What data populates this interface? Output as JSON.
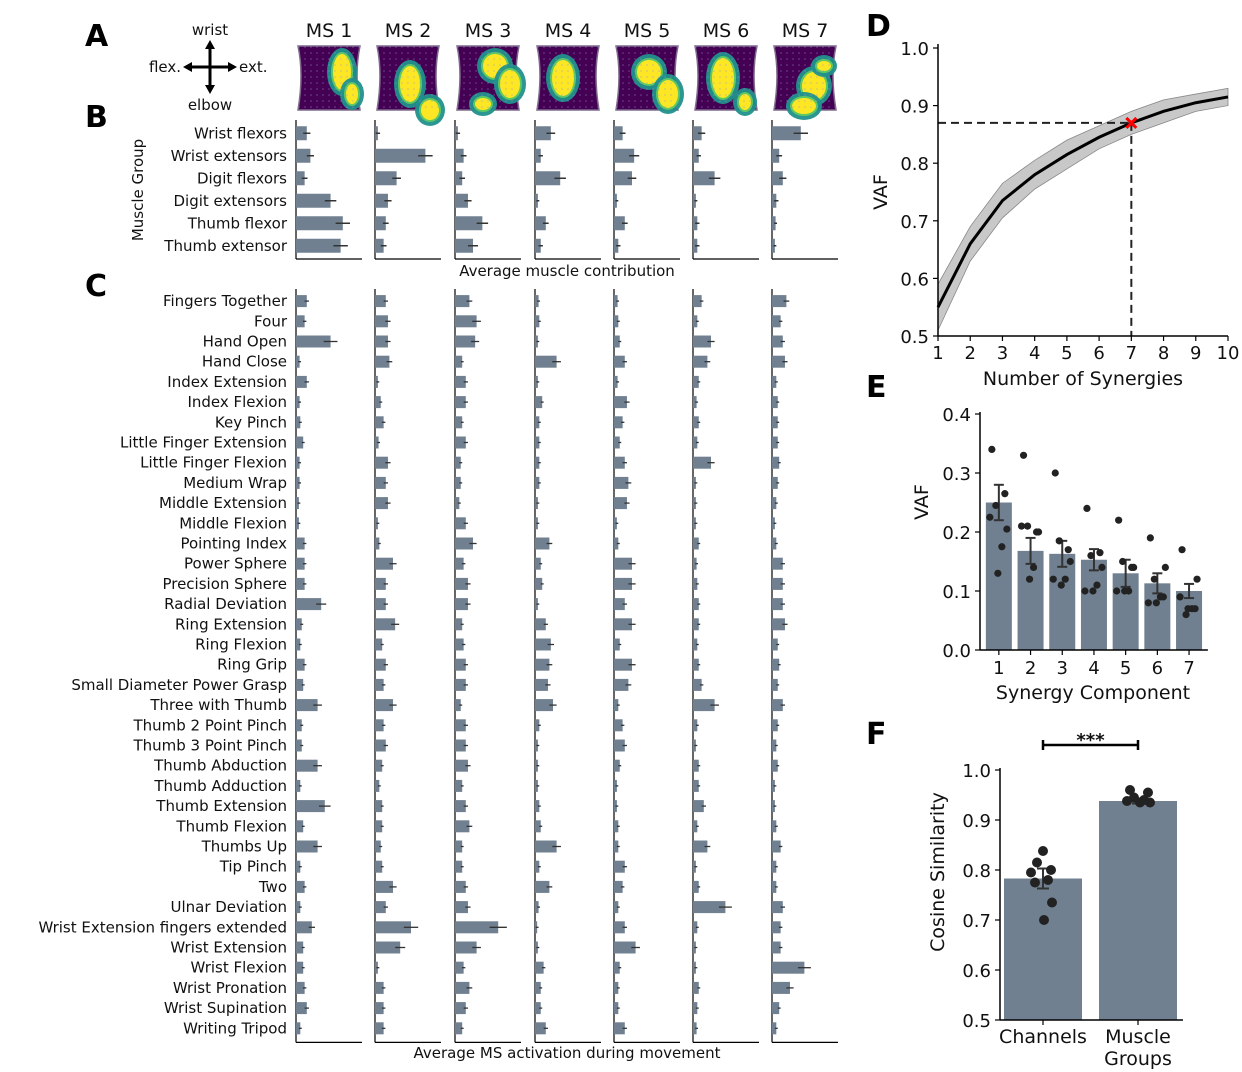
{
  "panels": {
    "A": "A",
    "B": "B",
    "C": "C",
    "D": "D",
    "E": "E",
    "F": "F"
  },
  "compass": {
    "up": "wrist",
    "down": "elbow",
    "left": "flex.",
    "right": "ext."
  },
  "ms_titles": [
    "MS 1",
    "MS 2",
    "MS 3",
    "MS 4",
    "MS 5",
    "MS 6",
    "MS 7"
  ],
  "colors": {
    "bar": "#708090",
    "line": "#000000",
    "band": "#c8c8c8",
    "marker": "#ff0000"
  },
  "chart_data": [
    {
      "id": "B",
      "type": "bar",
      "orientation": "horizontal",
      "ylabel": "Muscle Group",
      "xlabel": "Average muscle contribution",
      "categories": [
        "Wrist flexors",
        "Wrist extensors",
        "Digit flexors",
        "Digit extensors",
        "Thumb flexor",
        "Thumb extensor"
      ],
      "xlim": [
        0,
        1
      ],
      "series": [
        {
          "name": "MS 1",
          "values": [
            0.15,
            0.2,
            0.12,
            0.48,
            0.65,
            0.62
          ],
          "errors": [
            0.05,
            0.05,
            0.04,
            0.08,
            0.1,
            0.1
          ]
        },
        {
          "name": "MS 2",
          "values": [
            0.04,
            0.7,
            0.3,
            0.18,
            0.15,
            0.12
          ],
          "errors": [
            0.03,
            0.1,
            0.06,
            0.05,
            0.04,
            0.04
          ]
        },
        {
          "name": "MS 3",
          "values": [
            0.04,
            0.12,
            0.1,
            0.18,
            0.38,
            0.25
          ],
          "errors": [
            0.03,
            0.04,
            0.04,
            0.05,
            0.08,
            0.07
          ]
        },
        {
          "name": "MS 4",
          "values": [
            0.22,
            0.08,
            0.35,
            0.04,
            0.15,
            0.08
          ],
          "errors": [
            0.06,
            0.03,
            0.08,
            0.02,
            0.04,
            0.03
          ]
        },
        {
          "name": "MS 5",
          "values": [
            0.12,
            0.28,
            0.25,
            0.04,
            0.15,
            0.06
          ],
          "errors": [
            0.04,
            0.07,
            0.06,
            0.02,
            0.04,
            0.03
          ]
        },
        {
          "name": "MS 6",
          "values": [
            0.12,
            0.08,
            0.3,
            0.04,
            0.06,
            0.06
          ],
          "errors": [
            0.05,
            0.03,
            0.08,
            0.02,
            0.03,
            0.03
          ]
        },
        {
          "name": "MS 7",
          "values": [
            0.4,
            0.1,
            0.15,
            0.06,
            0.05,
            0.04
          ],
          "errors": [
            0.1,
            0.04,
            0.05,
            0.03,
            0.02,
            0.02
          ]
        }
      ]
    },
    {
      "id": "C",
      "type": "bar",
      "orientation": "horizontal",
      "xlabel": "Average MS activation during movement",
      "categories": [
        "Fingers Together",
        "Four",
        "Hand Open",
        "Hand Close",
        "Index Extension",
        "Index Flexion",
        "Key Pinch",
        "Little Finger Extension",
        "Little Finger Flexion",
        "Medium Wrap",
        "Middle Extension",
        "Middle Flexion",
        "Pointing Index",
        "Power Sphere",
        "Precision Sphere",
        "Radial Deviation",
        "Ring Extension",
        "Ring Flexion",
        "Ring Grip",
        "Small Diameter Power Grasp",
        "Three with Thumb",
        "Thumb 2 Point Pinch",
        "Thumb 3 Point Pinch",
        "Thumb Abduction",
        "Thumb Adduction",
        "Thumb Extension",
        "Thumb Flexion",
        "Thumbs Up",
        "Tip Pinch",
        "Two",
        "Ulnar Deviation",
        "Wrist Extension fingers extended",
        "Wrist Extension",
        "Wrist Flexion",
        "Wrist Pronation",
        "Wrist Supination",
        "Writing Tripod"
      ],
      "xlim": [
        0,
        1
      ],
      "series": [
        {
          "name": "MS 1",
          "values": [
            0.15,
            0.12,
            0.48,
            0.05,
            0.15,
            0.05,
            0.06,
            0.1,
            0.05,
            0.05,
            0.04,
            0.04,
            0.12,
            0.12,
            0.12,
            0.35,
            0.08,
            0.06,
            0.12,
            0.1,
            0.3,
            0.08,
            0.08,
            0.3,
            0.06,
            0.4,
            0.1,
            0.3,
            0.06,
            0.12,
            0.06,
            0.22,
            0.1,
            0.1,
            0.12,
            0.15,
            0.06
          ]
        },
        {
          "name": "MS 2",
          "values": [
            0.15,
            0.18,
            0.18,
            0.2,
            0.04,
            0.08,
            0.12,
            0.05,
            0.18,
            0.15,
            0.18,
            0.04,
            0.06,
            0.25,
            0.15,
            0.15,
            0.28,
            0.1,
            0.15,
            0.12,
            0.25,
            0.12,
            0.15,
            0.1,
            0.06,
            0.1,
            0.1,
            0.08,
            0.1,
            0.25,
            0.15,
            0.5,
            0.35,
            0.04,
            0.12,
            0.12,
            0.12
          ]
        },
        {
          "name": "MS 3",
          "values": [
            0.2,
            0.3,
            0.28,
            0.1,
            0.15,
            0.15,
            0.1,
            0.15,
            0.08,
            0.08,
            0.06,
            0.15,
            0.25,
            0.12,
            0.18,
            0.18,
            0.1,
            0.12,
            0.15,
            0.15,
            0.08,
            0.15,
            0.15,
            0.18,
            0.1,
            0.15,
            0.2,
            0.1,
            0.1,
            0.15,
            0.18,
            0.6,
            0.3,
            0.12,
            0.2,
            0.15,
            0.1
          ]
        },
        {
          "name": "MS 4",
          "values": [
            0.05,
            0.06,
            0.04,
            0.3,
            0.04,
            0.1,
            0.06,
            0.06,
            0.06,
            0.06,
            0.04,
            0.04,
            0.2,
            0.08,
            0.1,
            0.04,
            0.15,
            0.22,
            0.2,
            0.18,
            0.25,
            0.06,
            0.04,
            0.04,
            0.04,
            0.06,
            0.08,
            0.3,
            0.06,
            0.2,
            0.05,
            0.03,
            0.04,
            0.12,
            0.08,
            0.08,
            0.15
          ]
        },
        {
          "name": "MS 5",
          "values": [
            0.05,
            0.06,
            0.08,
            0.15,
            0.05,
            0.18,
            0.12,
            0.08,
            0.15,
            0.2,
            0.18,
            0.04,
            0.06,
            0.25,
            0.25,
            0.15,
            0.25,
            0.08,
            0.25,
            0.2,
            0.06,
            0.12,
            0.15,
            0.08,
            0.04,
            0.04,
            0.06,
            0.06,
            0.15,
            0.12,
            0.06,
            0.15,
            0.3,
            0.08,
            0.06,
            0.06,
            0.15
          ]
        },
        {
          "name": "MS 6",
          "values": [
            0.12,
            0.06,
            0.25,
            0.2,
            0.08,
            0.05,
            0.08,
            0.06,
            0.25,
            0.04,
            0.04,
            0.04,
            0.08,
            0.05,
            0.06,
            0.08,
            0.08,
            0.06,
            0.08,
            0.12,
            0.3,
            0.06,
            0.04,
            0.08,
            0.08,
            0.15,
            0.06,
            0.2,
            0.04,
            0.08,
            0.45,
            0.06,
            0.04,
            0.04,
            0.08,
            0.06,
            0.05
          ]
        },
        {
          "name": "MS 7",
          "values": [
            0.2,
            0.12,
            0.15,
            0.18,
            0.06,
            0.08,
            0.08,
            0.08,
            0.1,
            0.08,
            0.06,
            0.04,
            0.06,
            0.15,
            0.15,
            0.15,
            0.18,
            0.08,
            0.1,
            0.08,
            0.15,
            0.08,
            0.06,
            0.08,
            0.04,
            0.04,
            0.06,
            0.12,
            0.06,
            0.06,
            0.15,
            0.12,
            0.12,
            0.45,
            0.25,
            0.1,
            0.06
          ]
        }
      ]
    },
    {
      "id": "D",
      "type": "line",
      "xlabel": "Number of Synergies",
      "ylabel": "VAF",
      "x": [
        1,
        2,
        3,
        4,
        5,
        6,
        7,
        8,
        9,
        10
      ],
      "y": [
        0.55,
        0.66,
        0.735,
        0.78,
        0.815,
        0.845,
        0.87,
        0.89,
        0.905,
        0.915
      ],
      "band": [
        0.04,
        0.03,
        0.03,
        0.025,
        0.025,
        0.02,
        0.02,
        0.02,
        0.015,
        0.015
      ],
      "xlim": [
        1,
        10
      ],
      "ylim": [
        0.5,
        1.0
      ],
      "xticks": [
        1,
        2,
        3,
        4,
        5,
        6,
        7,
        8,
        9,
        10
      ],
      "yticks": [
        0.5,
        0.6,
        0.7,
        0.8,
        0.9,
        1.0
      ],
      "marker": {
        "x": 7,
        "y": 0.87
      }
    },
    {
      "id": "E",
      "type": "bar",
      "xlabel": "Synergy Component",
      "ylabel": "VAF",
      "categories": [
        "1",
        "2",
        "3",
        "4",
        "5",
        "6",
        "7"
      ],
      "values": [
        0.25,
        0.168,
        0.163,
        0.153,
        0.13,
        0.113,
        0.1
      ],
      "errors": [
        0.03,
        0.022,
        0.022,
        0.018,
        0.023,
        0.017,
        0.012
      ],
      "points": [
        [
          0.34,
          0.33,
          0.3,
          0.24,
          0.22,
          0.19,
          0.17
        ],
        [
          0.265,
          0.2,
          0.17,
          0.165,
          0.14,
          0.09,
          0.07
        ],
        [
          0.245,
          0.21,
          0.185,
          0.16,
          0.15,
          0.12,
          0.06
        ],
        [
          0.205,
          0.2,
          0.15,
          0.14,
          0.14,
          0.14,
          0.12
        ],
        [
          0.225,
          0.21,
          0.12,
          0.1,
          0.1,
          0.08,
          0.09
        ],
        [
          0.175,
          0.14,
          0.12,
          0.11,
          0.1,
          0.09,
          0.07
        ],
        [
          0.13,
          0.12,
          0.11,
          0.1,
          0.1,
          0.08,
          0.07
        ]
      ],
      "ylim": [
        0.0,
        0.4
      ],
      "yticks": [
        "0.0",
        "0.1",
        "0.2",
        "0.3",
        "0.4"
      ]
    },
    {
      "id": "F",
      "type": "bar",
      "ylabel": "Cosine Similarity",
      "categories": [
        "Channels",
        "Muscle\nGroups"
      ],
      "category_lines": [
        [
          "Channels"
        ],
        [
          "Muscle",
          "Groups"
        ]
      ],
      "values": [
        0.783,
        0.938
      ],
      "errors": [
        0.02,
        0.005
      ],
      "points": [
        [
          0.838,
          0.815,
          0.8,
          0.795,
          0.78,
          0.775,
          0.735,
          0.7
        ],
        [
          0.96,
          0.955,
          0.945,
          0.94,
          0.938,
          0.935,
          0.935
        ]
      ],
      "ylim": [
        0.5,
        1.0
      ],
      "yticks": [
        "0.5",
        "0.6",
        "0.7",
        "0.8",
        "0.9",
        "1.0"
      ],
      "significance": "***"
    }
  ]
}
